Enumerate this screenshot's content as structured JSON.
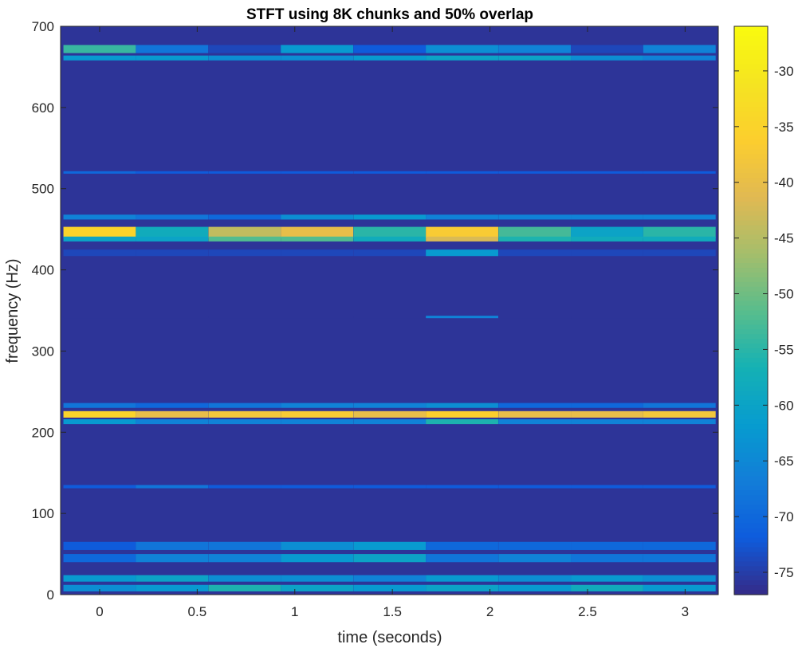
{
  "chart_data": {
    "type": "heatmap",
    "title": "STFT using 8K chunks and 50% overlap",
    "xlabel": "time (seconds)",
    "ylabel": "frequency (Hz)",
    "xlim": [
      -0.2,
      3.17
    ],
    "ylim": [
      0,
      700
    ],
    "xticks": [
      0,
      0.5,
      1,
      1.5,
      2,
      2.5,
      3
    ],
    "xtick_labels": [
      "0",
      "0.5",
      "1",
      "1.5",
      "2",
      "2.5",
      "3"
    ],
    "yticks": [
      0,
      100,
      200,
      300,
      400,
      500,
      600,
      700
    ],
    "ytick_labels": [
      "0",
      "100",
      "200",
      "300",
      "400",
      "500",
      "600",
      "700"
    ],
    "colorbar": {
      "lim": [
        -77,
        -26
      ],
      "ticks": [
        -30,
        -35,
        -40,
        -45,
        -50,
        -55,
        -60,
        -65,
        -70,
        -75
      ],
      "tick_labels": [
        "-30",
        "-35",
        "-40",
        "-45",
        "-50",
        "-55",
        "-60",
        "-65",
        "-70",
        "-75"
      ],
      "colormap": "parula"
    },
    "background_level_db": -76,
    "time_frames": [
      0,
      0.371,
      0.743,
      1.114,
      1.486,
      1.857,
      2.229,
      2.6,
      2.971
    ],
    "bands": [
      {
        "freq": 672,
        "width": 10,
        "levels": [
          -54,
          -68,
          -74,
          -62,
          -72,
          -64,
          -66,
          -74,
          -66
        ]
      },
      {
        "freq": 661,
        "width": 6,
        "levels": [
          -62,
          -62,
          -64,
          -64,
          -62,
          -60,
          -60,
          -64,
          -66
        ]
      },
      {
        "freq": 446,
        "width": 14,
        "levels": [
          -35,
          -58,
          -44,
          -40,
          -55,
          -37,
          -53,
          -60,
          -55
        ]
      },
      {
        "freq": 438,
        "width": 6,
        "levels": [
          -60,
          -60,
          -52,
          -52,
          -58,
          -42,
          -56,
          -58,
          -58
        ]
      },
      {
        "freq": 421,
        "width": 8,
        "levels": [
          -74,
          -74,
          -74,
          -74,
          -74,
          -62,
          -74,
          -74,
          -74
        ]
      },
      {
        "freq": 465,
        "width": 6,
        "levels": [
          -66,
          -68,
          -70,
          -64,
          -62,
          -66,
          -66,
          -66,
          -66
        ]
      },
      {
        "freq": 222,
        "width": 8,
        "levels": [
          -35,
          -40,
          -38,
          -37,
          -40,
          -36,
          -40,
          -40,
          -38
        ]
      },
      {
        "freq": 213,
        "width": 6,
        "levels": [
          -62,
          -66,
          -66,
          -66,
          -66,
          -56,
          -66,
          -66,
          -66
        ]
      },
      {
        "freq": 233,
        "width": 6,
        "levels": [
          -68,
          -70,
          -68,
          -66,
          -66,
          -64,
          -70,
          -70,
          -68
        ]
      },
      {
        "freq": 60,
        "width": 10,
        "levels": [
          -72,
          -68,
          -68,
          -64,
          -62,
          -70,
          -70,
          -70,
          -70
        ]
      },
      {
        "freq": 45,
        "width": 10,
        "levels": [
          -70,
          -66,
          -66,
          -62,
          -60,
          -68,
          -66,
          -68,
          -68
        ]
      },
      {
        "freq": 20,
        "width": 8,
        "levels": [
          -62,
          -60,
          -64,
          -64,
          -66,
          -62,
          -64,
          -62,
          -64
        ]
      },
      {
        "freq": 8,
        "width": 8,
        "levels": [
          -64,
          -62,
          -56,
          -60,
          -62,
          -60,
          -62,
          -58,
          -62
        ]
      },
      {
        "freq": 133,
        "width": 4,
        "levels": [
          -72,
          -68,
          -72,
          -72,
          -72,
          -72,
          -72,
          -72,
          -72
        ]
      },
      {
        "freq": 342,
        "width": 3,
        "levels": [
          -76,
          -76,
          -76,
          -76,
          -76,
          -66,
          -76,
          -76,
          -76
        ]
      },
      {
        "freq": 520,
        "width": 3,
        "levels": [
          -70,
          -72,
          -72,
          -72,
          -72,
          -72,
          -72,
          -72,
          -72
        ]
      }
    ]
  }
}
